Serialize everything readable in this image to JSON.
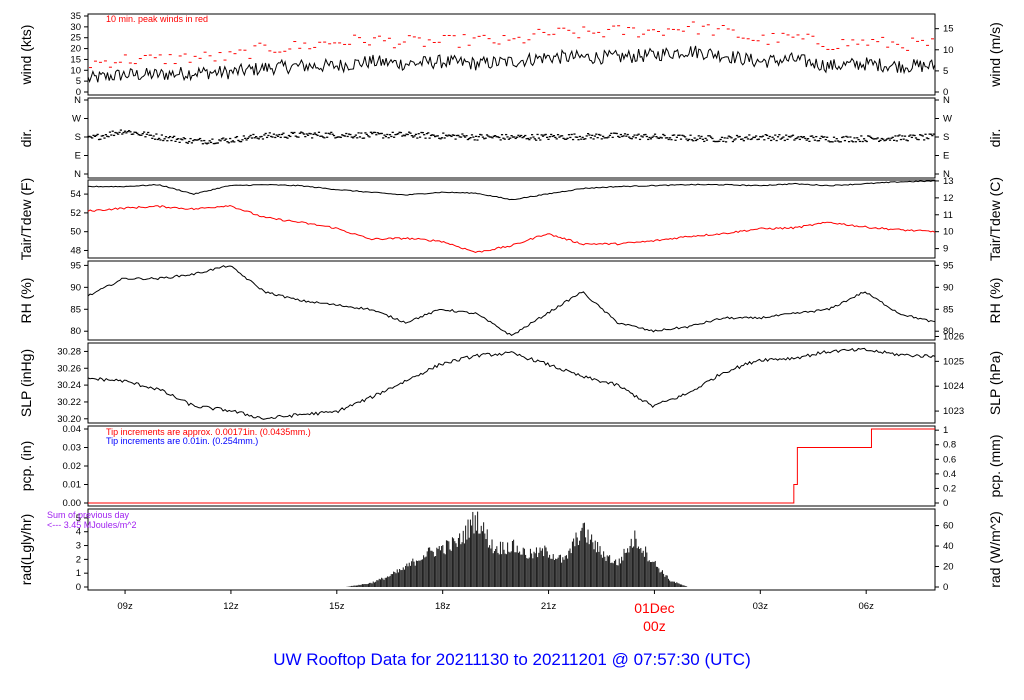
{
  "title": "UW Rooftop Data for 20211130  to  20211201 @ 07:57:30  (UTC)",
  "colors": {
    "title": "#0000ff",
    "peak": "#ff0000",
    "date": "#ff0000",
    "tdew": "#ff0000",
    "precip": "#ff0000",
    "sum": "#a020f0",
    "annot_red": "#ff0000",
    "annot_blue": "#0000ff",
    "line": "#000000"
  },
  "x_axis": {
    "ticks": [
      "09z",
      "12z",
      "15z",
      "18z",
      "21z",
      "00z",
      "03z",
      "06z"
    ],
    "date_label": "01Dec",
    "date_time": "00z"
  },
  "chart_data": [
    {
      "id": "wind",
      "type": "line",
      "left_label": "wind (kts)",
      "right_label": "wind (m/s)",
      "left_ticks": [
        "0",
        "5",
        "10",
        "15",
        "20",
        "25",
        "30",
        "35"
      ],
      "right_ticks": [
        "0",
        "5",
        "10",
        "15"
      ],
      "annotation": "10 min. peak winds in red",
      "ylim": [
        0,
        35
      ],
      "hours": [
        0,
        1,
        2,
        3,
        4,
        5,
        6,
        7,
        8,
        9,
        10,
        11,
        12,
        13,
        14,
        15,
        16,
        17,
        18,
        19,
        20,
        21,
        22,
        23,
        24
      ],
      "mean_kts": [
        6,
        8,
        8,
        9,
        9,
        11,
        12,
        12,
        14,
        13,
        14,
        13,
        14,
        16,
        16,
        16,
        17,
        19,
        17,
        14,
        15,
        12,
        13,
        12,
        12
      ],
      "peak_kts": [
        13,
        15,
        15,
        16,
        16,
        20,
        21,
        23,
        24,
        23,
        23,
        24,
        23,
        27,
        27,
        28,
        28,
        30,
        28,
        24,
        25,
        22,
        23,
        22,
        22
      ]
    },
    {
      "id": "dir",
      "type": "scatter",
      "left_label": "dir.",
      "right_label": "dir.",
      "left_ticks": [
        "N",
        "E",
        "S",
        "W",
        "N"
      ],
      "right_ticks": [
        "N",
        "E",
        "S",
        "W",
        "N"
      ],
      "ylim": [
        0,
        360
      ],
      "hours": [
        0,
        1,
        2,
        3,
        4,
        5,
        6,
        7,
        8,
        9,
        10,
        11,
        12,
        13,
        14,
        15,
        16,
        17,
        18,
        19,
        20,
        21,
        22,
        23,
        24
      ],
      "deg": [
        170,
        210,
        180,
        160,
        165,
        185,
        190,
        190,
        188,
        190,
        185,
        180,
        178,
        180,
        182,
        185,
        180,
        175,
        170,
        180,
        175,
        170,
        172,
        175,
        180
      ]
    },
    {
      "id": "temp",
      "type": "line",
      "left_label": "Tair/Tdew (F)",
      "right_label": "Tair/Tdew (C)",
      "left_ticks": [
        "48",
        "50",
        "52",
        "54"
      ],
      "right_ticks": [
        "9",
        "10",
        "11",
        "12",
        "13"
      ],
      "ylim": [
        47.2,
        55.5
      ],
      "hours": [
        0,
        1,
        2,
        3,
        4,
        5,
        6,
        7,
        8,
        9,
        10,
        11,
        12,
        13,
        14,
        15,
        16,
        17,
        18,
        19,
        20,
        21,
        22,
        23,
        24
      ],
      "series": [
        {
          "name": "Tair",
          "values": [
            54.8,
            54.8,
            55.0,
            54.0,
            54.9,
            55.0,
            54.9,
            54.5,
            54.2,
            53.9,
            54.2,
            54.1,
            53.4,
            54.0,
            54.6,
            54.8,
            54.9,
            55.0,
            55.0,
            54.9,
            55.1,
            54.9,
            55.1,
            55.3,
            55.4
          ]
        },
        {
          "name": "Tdew",
          "values": [
            52.2,
            52.5,
            52.7,
            52.4,
            52.8,
            51.5,
            51.0,
            50.4,
            49.2,
            49.3,
            49.0,
            47.8,
            48.5,
            49.8,
            48.7,
            48.7,
            49.0,
            49.5,
            49.8,
            50.3,
            50.4,
            51.0,
            50.5,
            50.2,
            50.0
          ]
        }
      ]
    },
    {
      "id": "rh",
      "type": "line",
      "left_label": "RH (%)",
      "right_label": "RH (%)",
      "left_ticks": [
        "80",
        "85",
        "90",
        "95"
      ],
      "right_ticks": [
        "80",
        "85",
        "90",
        "95"
      ],
      "ylim": [
        78,
        96
      ],
      "hours": [
        0,
        1,
        2,
        3,
        4,
        5,
        6,
        7,
        8,
        9,
        10,
        11,
        12,
        13,
        14,
        15,
        16,
        17,
        18,
        19,
        20,
        21,
        22,
        23,
        24
      ],
      "values": [
        88,
        92,
        92,
        93,
        95,
        89,
        87,
        86,
        85,
        82,
        85,
        84,
        79,
        84,
        89,
        82,
        80,
        81,
        83,
        83,
        84,
        85,
        89,
        84,
        82
      ]
    },
    {
      "id": "slp",
      "type": "line",
      "left_label": "SLP (inHg)",
      "right_label": "SLP (hPa)",
      "left_ticks": [
        "30.20",
        "30.22",
        "30.24",
        "30.26",
        "30.28"
      ],
      "right_ticks": [
        "1023",
        "1024",
        "1025",
        "1026"
      ],
      "ylim": [
        30.195,
        30.29
      ],
      "hours": [
        0,
        1,
        2,
        3,
        4,
        5,
        6,
        7,
        8,
        9,
        10,
        11,
        12,
        13,
        14,
        15,
        16,
        17,
        18,
        19,
        20,
        21,
        22,
        23,
        24
      ],
      "values": [
        30.248,
        30.245,
        30.235,
        30.215,
        30.21,
        30.2,
        30.205,
        30.208,
        30.225,
        30.245,
        30.265,
        30.275,
        30.278,
        30.265,
        30.25,
        30.24,
        30.215,
        30.23,
        30.255,
        30.27,
        30.272,
        30.28,
        30.282,
        30.276,
        30.274
      ]
    },
    {
      "id": "pcp",
      "type": "line",
      "left_label": "pcp. (in)",
      "right_label": "pcp. (mm)",
      "left_ticks": [
        "0.00",
        "0.01",
        "0.02",
        "0.03",
        "0.04"
      ],
      "right_ticks": [
        "0",
        "0.2",
        "0.4",
        "0.6",
        "0.8",
        "1"
      ],
      "annotation_1": "Tip increments are approx. 0.00171in. (0.0435mm.)",
      "annotation_2": "Tip increments are 0.01in. (0.254mm.)",
      "ylim": [
        0,
        0.04
      ],
      "hours": [
        0,
        19.9,
        20.0,
        20.1,
        21.2,
        22.1,
        22.2,
        24
      ],
      "values": [
        0,
        0,
        0.01,
        0.03,
        0.03,
        0.03,
        0.04,
        0.04
      ]
    },
    {
      "id": "rad",
      "type": "area",
      "left_label": "rad(Lgly/hr)",
      "right_label": "rad (W/m^2)",
      "left_ticks": [
        "0",
        "1",
        "2",
        "3",
        "4",
        "5"
      ],
      "right_ticks": [
        "0",
        "20",
        "40",
        "60"
      ],
      "sum_line1": "Sum of previous day",
      "sum_line2": "<--- 3.45 MJoules/m^2",
      "ylim": [
        0,
        5.5
      ],
      "hours": [
        7.3,
        8,
        8.5,
        9,
        9.5,
        10,
        10.5,
        11,
        11.5,
        12,
        12.5,
        13,
        13.5,
        14,
        14.5,
        15,
        15.5,
        16,
        16.5,
        17
      ],
      "values": [
        0,
        0.3,
        0.8,
        1.5,
        2.5,
        3.0,
        3.5,
        5.4,
        3.0,
        3.2,
        2.5,
        2.8,
        2.0,
        4.5,
        2.8,
        1.8,
        3.8,
        2.0,
        0.5,
        0
      ]
    }
  ]
}
